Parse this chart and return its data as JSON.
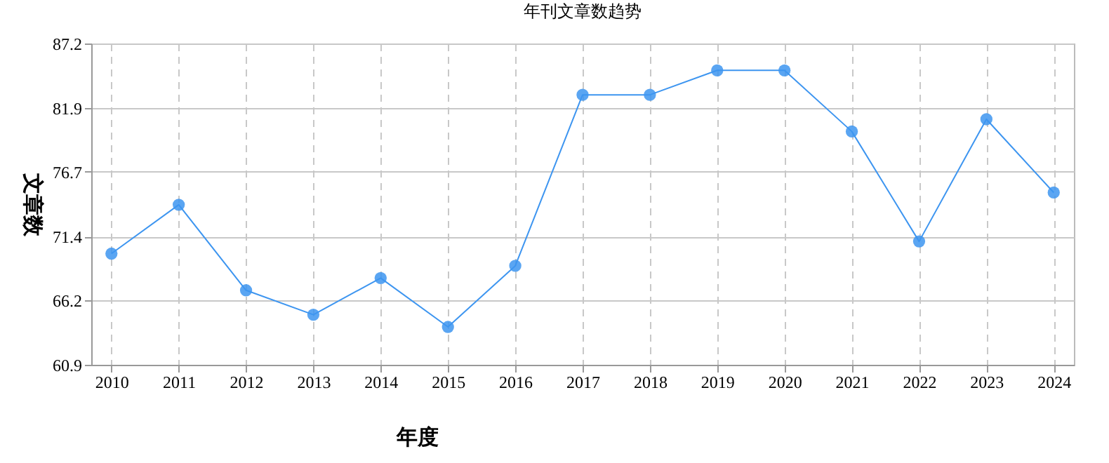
{
  "chart_data": {
    "type": "line",
    "title": "年刊文章数趋势",
    "xlabel": "年度",
    "ylabel": "文章数",
    "categories": [
      "2010",
      "2011",
      "2012",
      "2013",
      "2014",
      "2015",
      "2016",
      "2017",
      "2018",
      "2019",
      "2020",
      "2021",
      "2022",
      "2023",
      "2024"
    ],
    "series": [
      {
        "color": "#3d95f0",
        "values": [
          70,
          74,
          67,
          65,
          68,
          64,
          69,
          83,
          83,
          85,
          85,
          80,
          71,
          81,
          75
        ]
      }
    ],
    "ylim": [
      60.9,
      87.2
    ],
    "yticks": [
      60.9,
      66.2,
      71.4,
      76.7,
      81.9,
      87.2
    ],
    "grid": true,
    "marker": "circle",
    "line_style": "solid"
  }
}
